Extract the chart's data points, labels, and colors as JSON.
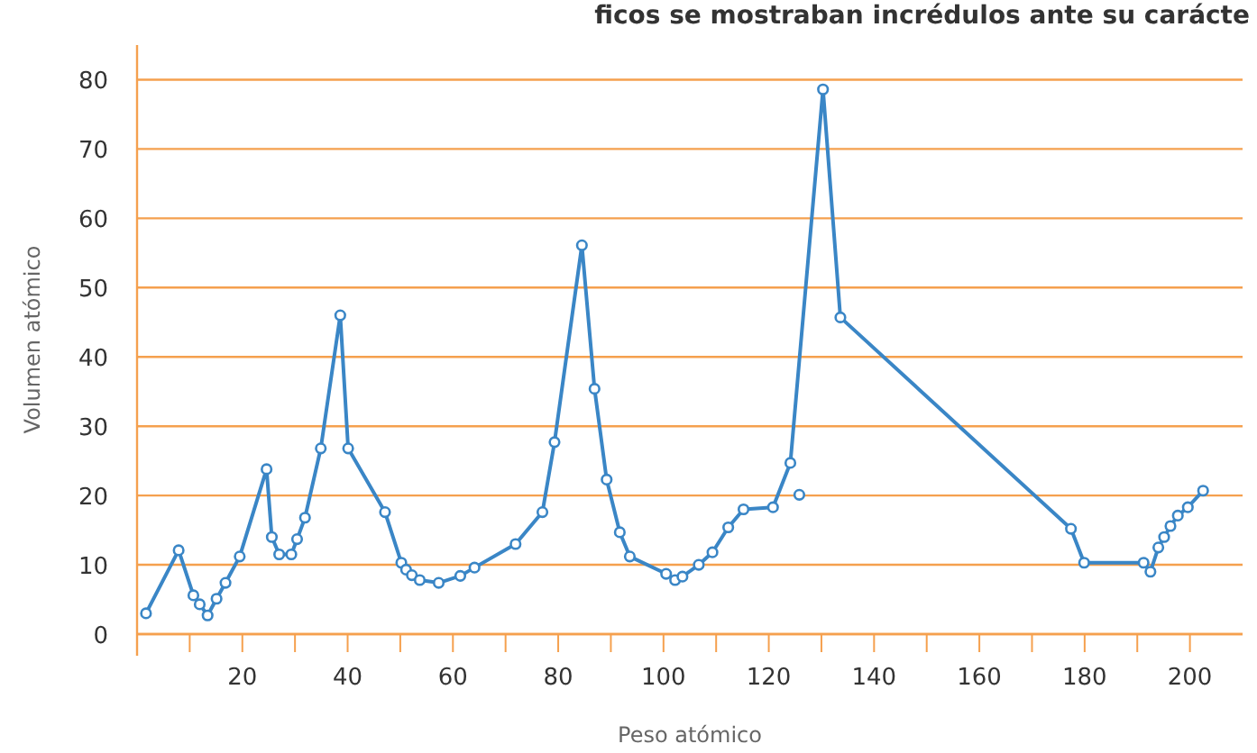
{
  "chart_data": {
    "type": "line",
    "title": "ficos se mostraban incrédulos ante su carácte",
    "xlabel": "Peso atómico",
    "ylabel": "Volumen atómico",
    "xlim": [
      0,
      210
    ],
    "ylim": [
      0,
      85
    ],
    "xticks": [
      {
        "value": 10,
        "label": null
      },
      20,
      {
        "value": 30,
        "label": null
      },
      40,
      {
        "value": 50,
        "label": null
      },
      60,
      {
        "value": 70,
        "label": null
      },
      80,
      {
        "value": 90,
        "label": null
      },
      100,
      {
        "value": 110,
        "label": null
      },
      120,
      {
        "value": 130,
        "label": null
      },
      140,
      {
        "value": 150,
        "label": null
      },
      160,
      {
        "value": 170,
        "label": null
      },
      180,
      {
        "value": 190,
        "label": null
      },
      200
    ],
    "yticks": [
      0,
      10,
      20,
      30,
      40,
      50,
      60,
      70,
      80
    ],
    "grid": "y",
    "marker": "circle",
    "line_style": "solid",
    "series": [
      {
        "color": "#3a86c6",
        "x": [
          1.7,
          7.9,
          10.7,
          11.9,
          13.4,
          15.1,
          16.8,
          19.5,
          24.6,
          25.6,
          27.0,
          29.3,
          30.4,
          31.9,
          34.9,
          38.6,
          40.1,
          47.1,
          50.2,
          51.1,
          52.2,
          53.7,
          57.3,
          61.4,
          64.1,
          71.9,
          77.0,
          79.3,
          84.5,
          86.9,
          89.2,
          91.7,
          93.6,
          100.5,
          102.2,
          103.6,
          106.7,
          109.3,
          112.3,
          115.2,
          120.8,
          124.1,
          130.3,
          133.6,
          177.4,
          179.9,
          191.2,
          192.5,
          194.0,
          195.1,
          196.3,
          197.7,
          199.6,
          202.5
        ],
        "values": [
          3.0,
          12.1,
          5.6,
          4.3,
          2.7,
          5.1,
          7.4,
          11.2,
          23.8,
          14.0,
          11.5,
          11.5,
          13.7,
          16.8,
          26.8,
          46.0,
          26.8,
          17.6,
          10.3,
          9.3,
          8.5,
          7.8,
          7.4,
          8.4,
          9.6,
          13.0,
          17.6,
          27.7,
          56.1,
          35.4,
          22.3,
          14.7,
          11.2,
          8.7,
          7.8,
          8.3,
          10.0,
          11.8,
          15.4,
          18.0,
          18.3,
          24.7,
          78.6,
          45.7,
          15.2,
          10.3,
          10.3,
          9.0,
          12.5,
          14.0,
          15.6,
          17.1,
          18.3,
          20.7
        ]
      },
      {
        "type": "scatter",
        "color": "#3a86c6",
        "x": [
          125.8
        ],
        "values": [
          20.1
        ]
      }
    ]
  }
}
